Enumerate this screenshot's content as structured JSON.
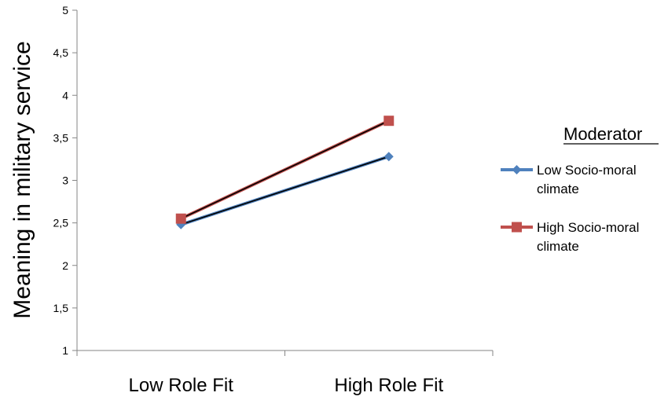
{
  "chart_data": {
    "type": "line",
    "title": "",
    "xlabel": "",
    "ylabel": "Meaning in military service",
    "categories": [
      "Low Role Fit",
      "High Role Fit"
    ],
    "ylim": [
      1,
      5
    ],
    "yticks": [
      "1",
      "1,5",
      "2",
      "2,5",
      "3",
      "3,5",
      "4",
      "4,5",
      "5"
    ],
    "grid": false,
    "legend": {
      "title": "Moderator",
      "position": "right"
    },
    "series": [
      {
        "name": "Low Socio-moral climate",
        "name_lines": [
          "Low Socio-moral",
          "climate"
        ],
        "values": [
          2.48,
          3.28
        ],
        "color": "#4f81bd",
        "marker": "diamond"
      },
      {
        "name": "High Socio-moral climate",
        "name_lines": [
          "High Socio-moral",
          "climate"
        ],
        "values": [
          2.55,
          3.7
        ],
        "color": "#c0504d",
        "marker": "square"
      }
    ]
  }
}
